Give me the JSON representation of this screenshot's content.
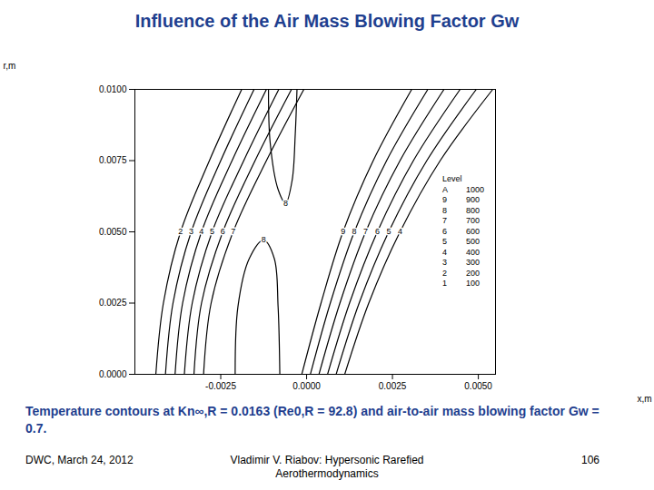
{
  "chart_data": {
    "type": "line",
    "title": "Influence of the Air Mass Blowing Factor Gw",
    "caption": "Temperature contours at Kn∞,R = 0.0163 (Re0,R = 92.8) and air-to-air mass blowing factor Gw = 0.7.",
    "footer": [
      "DWC, March 24, 2012",
      "Vladimir V. Riabov: Hypersonic Rarefied Aerothermodynamics",
      "106"
    ],
    "x_label": "x,m",
    "y_label": "r,m",
    "color": "#000000",
    "xlim": [
      -0.005,
      0.0055
    ],
    "xticks": [
      {
        "value": -0.0025,
        "label": "-0.0025"
      },
      {
        "value": 0,
        "label": "0.0000"
      },
      {
        "value": 0.0025,
        "label": "0.0025"
      },
      {
        "value": 0.005,
        "label": "0.0050"
      }
    ],
    "ylim": [
      0,
      0.01
    ],
    "yticks": [
      {
        "value": 0,
        "label": "0.0000"
      },
      {
        "value": 0.0025,
        "label": "0.0025"
      },
      {
        "value": 0.005,
        "label": "0.0050"
      },
      {
        "value": 0.0075,
        "label": "0.0075"
      },
      {
        "value": 0.01,
        "label": "0.0100"
      }
    ],
    "contour_legend": {
      "title": "Level",
      "levels": [
        "A",
        "9",
        "8",
        "7",
        "6",
        "5",
        "4",
        "3",
        "2",
        "1"
      ],
      "temperatures": [
        1000,
        900,
        800,
        700,
        600,
        500,
        400,
        300,
        200,
        100
      ]
    },
    "series": [
      {
        "name": "2",
        "x": [
          -0.00439,
          -0.00417,
          -0.00367,
          -0.00283,
          -0.00189
        ],
        "values": [
          0,
          0.0025,
          0.005,
          0.0075,
          0.01
        ]
      },
      {
        "name": "3",
        "x": [
          -0.00411,
          -0.00389,
          -0.00336,
          -0.0025,
          -0.00153
        ],
        "values": [
          0,
          0.0025,
          0.005,
          0.0075,
          0.01
        ]
      },
      {
        "name": "4",
        "x": [
          -0.00383,
          -0.00361,
          -0.00306,
          -0.00217,
          -0.00117
        ],
        "values": [
          0,
          0.0025,
          0.005,
          0.0075,
          0.01
        ]
      },
      {
        "name": "5",
        "x": [
          -0.00356,
          -0.00333,
          -0.00275,
          -0.00183,
          -0.00081
        ],
        "values": [
          0,
          0.0025,
          0.005,
          0.0075,
          0.01
        ]
      },
      {
        "name": "6",
        "x": [
          -0.00328,
          -0.00306,
          -0.00244,
          -0.0015,
          -0.00044
        ],
        "values": [
          0,
          0.0025,
          0.005,
          0.0075,
          0.01
        ]
      },
      {
        "name": "7",
        "x": [
          -0.003,
          -0.00278,
          -0.00214,
          -0.00117,
          -8e-05
        ],
        "values": [
          0,
          0.0025,
          0.005,
          0.0075,
          0.01
        ]
      },
      {
        "name": "8",
        "x": [
          -0.00208,
          -0.002,
          -0.00167,
          -0.00125,
          -0.00094,
          -0.00083,
          -0.00078
        ],
        "values": [
          0,
          0.00237,
          0.00406,
          0.00471,
          0.00406,
          0.00237,
          0
        ]
      },
      {
        "name": "8",
        "x": [
          -0.00111,
          -0.00106,
          -0.00083,
          -0.00061,
          -0.00042,
          -0.00033,
          -0.00028
        ],
        "values": [
          0.01,
          0.00812,
          0.00649,
          0.00601,
          0.00682,
          0.00844,
          0.01
        ]
      },
      {
        "name": "9",
        "x": [
          -0.00014,
          0.00042,
          0.00106,
          0.00194,
          0.00306
        ],
        "values": [
          0,
          0.0025,
          0.005,
          0.0075,
          0.01
        ]
      },
      {
        "name": "8",
        "x": [
          0.00011,
          0.00069,
          0.00139,
          0.00233,
          0.00353
        ],
        "values": [
          0,
          0.0025,
          0.005,
          0.0075,
          0.01
        ]
      },
      {
        "name": "7",
        "x": [
          0.00036,
          0.00097,
          0.00172,
          0.00272,
          0.004
        ],
        "values": [
          0,
          0.0025,
          0.005,
          0.0075,
          0.01
        ]
      },
      {
        "name": "6",
        "x": [
          0.00061,
          0.00125,
          0.00206,
          0.00311,
          0.00447
        ],
        "values": [
          0,
          0.0025,
          0.005,
          0.0075,
          0.01
        ]
      },
      {
        "name": "5",
        "x": [
          0.00086,
          0.00153,
          0.00239,
          0.0035,
          0.00494
        ],
        "values": [
          0,
          0.0025,
          0.005,
          0.0075,
          0.01
        ]
      },
      {
        "name": "4",
        "x": [
          0.00111,
          0.00181,
          0.00272,
          0.00389,
          0.00542
        ],
        "values": [
          0,
          0.0025,
          0.005,
          0.0075,
          0.01
        ]
      }
    ]
  }
}
